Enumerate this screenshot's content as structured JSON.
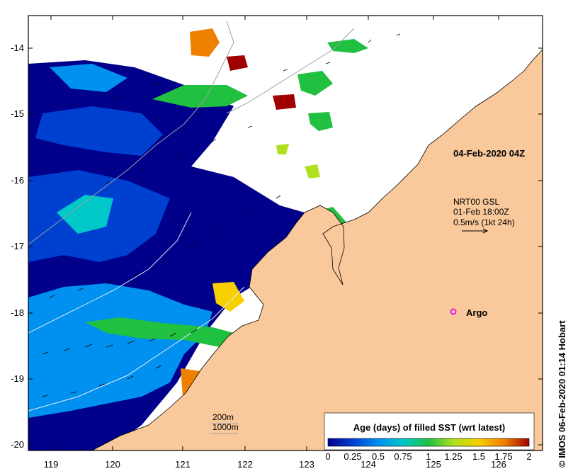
{
  "map": {
    "lon_ticks": [
      "119",
      "120",
      "121",
      "122",
      "123",
      "124",
      "125",
      "126"
    ],
    "lat_ticks": [
      "-14",
      "-15",
      "-16",
      "-17",
      "-18",
      "-19",
      "-20"
    ],
    "timestamp_label": "04-Feb-2020 04Z",
    "current": {
      "source": "NRT00 GSL",
      "date": "01-Feb 18:00Z",
      "scale": "0.5m/s (1kt 24h)"
    },
    "argo_label": "Argo",
    "contours": [
      "200m",
      "1000m"
    ],
    "colors": {
      "land": "#f9c89b",
      "nodata": "#ffffff",
      "argo": "#e51be5"
    }
  },
  "colorbar": {
    "title": "Age (days) of filled SST (wrt latest)",
    "ticks": [
      "0",
      "0.25",
      "0.5",
      "0.75",
      "1",
      "1.25",
      "1.5",
      "1.75",
      "2"
    ],
    "range": [
      0,
      2
    ],
    "colors": [
      "#00008b",
      "#0040d0",
      "#0090f0",
      "#00c8c8",
      "#20c040",
      "#b0e020",
      "#f8d000",
      "#f08000",
      "#a00000"
    ]
  },
  "credit": "© IMOS 06-Feb-2020 01:14 Hobart"
}
